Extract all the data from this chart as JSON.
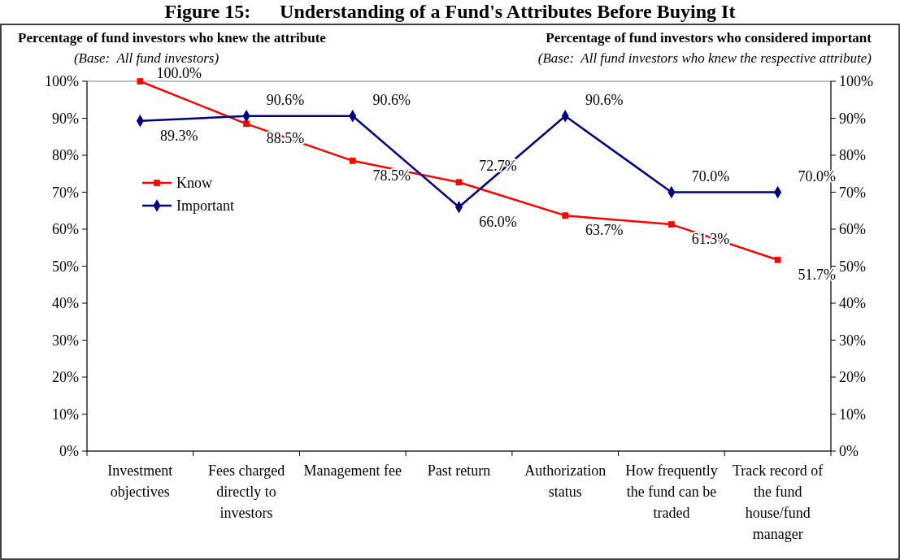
{
  "chart_data": {
    "type": "line",
    "title": "Figure 15:      Understanding of a Fund's Attributes Before Buying It",
    "ylabel": "Percentage of fund investors who knew the attribute",
    "y2label": "Percentage of fund investors who considered important",
    "annotations": [
      "(Base:  All fund investors)",
      "(Base:  All fund investors who knew the respective attribute)"
    ],
    "categories": [
      "Investment objectives",
      "Fees charged directly to investors",
      "Management fee",
      "Past return",
      "Authorization status",
      "How frequently the fund can be traded",
      "Track record of the fund house/fund manager"
    ],
    "series": [
      {
        "name": "Know",
        "color": "#ff0000",
        "marker": "square",
        "values": [
          100.0,
          88.5,
          78.5,
          72.7,
          63.7,
          61.3,
          51.7
        ],
        "value_labels": [
          "100.0%",
          "88.5%",
          "78.5%",
          "72.7%",
          "63.7%",
          "61.3%",
          "51.7%"
        ]
      },
      {
        "name": "Important",
        "color": "#000080",
        "marker": "diamond",
        "values": [
          89.3,
          90.6,
          90.6,
          66.0,
          90.6,
          70.0,
          70.0
        ],
        "value_labels": [
          "89.3%",
          "90.6%",
          "90.6%",
          "66.0%",
          "90.6%",
          "70.0%",
          "70.0%"
        ]
      }
    ],
    "ylim": [
      0,
      100
    ],
    "yticks": [
      {
        "value": 0,
        "label": "0%"
      },
      {
        "value": 10,
        "label": "10%"
      },
      {
        "value": 20,
        "label": "20%"
      },
      {
        "value": 30,
        "label": "30%"
      },
      {
        "value": 40,
        "label": "40%"
      },
      {
        "value": 50,
        "label": "50%"
      },
      {
        "value": 60,
        "label": "60%"
      },
      {
        "value": 70,
        "label": "70%"
      },
      {
        "value": 80,
        "label": "80%"
      },
      {
        "value": 90,
        "label": "90%"
      },
      {
        "value": 100,
        "label": "100%"
      }
    ],
    "y2lim": [
      0,
      100
    ],
    "y2ticks": [
      {
        "value": 0,
        "label": "0%"
      },
      {
        "value": 10,
        "label": "10%"
      },
      {
        "value": 20,
        "label": "20%"
      },
      {
        "value": 30,
        "label": "30%"
      },
      {
        "value": 40,
        "label": "40%"
      },
      {
        "value": 50,
        "label": "50%"
      },
      {
        "value": 60,
        "label": "60%"
      },
      {
        "value": 70,
        "label": "70%"
      },
      {
        "value": 80,
        "label": "80%"
      },
      {
        "value": 90,
        "label": "90%"
      },
      {
        "value": 100,
        "label": "100%"
      }
    ],
    "grid": false,
    "legend": "left",
    "line_style": "solid"
  }
}
